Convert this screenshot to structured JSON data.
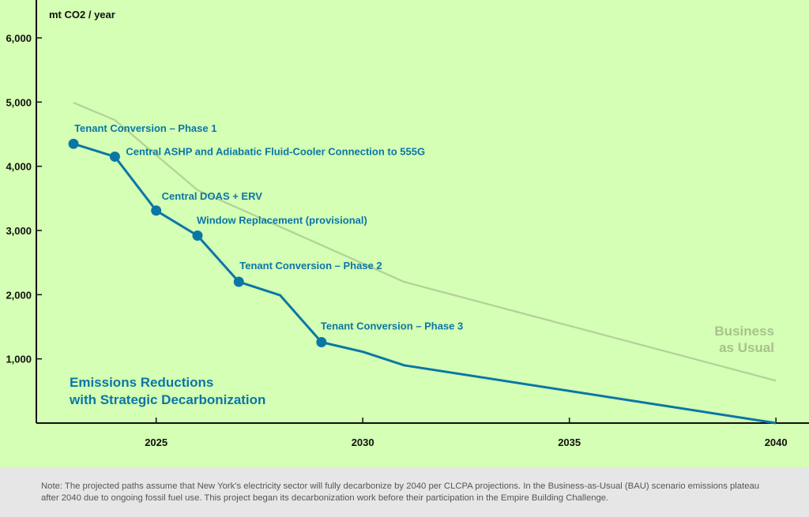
{
  "chart_data": {
    "type": "line",
    "ylabel": "mt CO2 / year",
    "yticks": [
      1000,
      2000,
      3000,
      4000,
      5000,
      6000
    ],
    "ytick_labels": [
      "1,000",
      "2,000",
      "3,000",
      "4,000",
      "5,000",
      "6,000"
    ],
    "xticks": [
      2025,
      2030,
      2035,
      2040
    ],
    "xlim": [
      2022.1,
      2040.8
    ],
    "ylim": [
      0,
      6590
    ],
    "colors": {
      "bau": "#b4d098",
      "strategic": "#0b76a6",
      "background": "#d4ffb4"
    },
    "series": [
      {
        "name": "Business as Usual",
        "label_lines": [
          "Business",
          "as Usual"
        ],
        "x": [
          2023,
          2024,
          2026,
          2031,
          2040
        ],
        "y": [
          4990,
          4720,
          3630,
          2200,
          660
        ]
      },
      {
        "name": "Emissions Reductions with Strategic Decarbonization",
        "label_lines": [
          "Emissions Reductions",
          "with Strategic Decarbonization"
        ],
        "x": [
          2023,
          2024,
          2025,
          2026,
          2027,
          2028,
          2029,
          2030,
          2031,
          2040
        ],
        "y": [
          4350,
          4150,
          3310,
          2920,
          2200,
          1990,
          1260,
          1110,
          900,
          0
        ],
        "markers": [
          2023,
          2024,
          2025,
          2026,
          2027,
          2029
        ]
      }
    ],
    "annotations": [
      {
        "x": 2023,
        "text": "Tenant Conversion – Phase 1"
      },
      {
        "x": 2024,
        "text": "Central ASHP and Adiabatic Fluid-Cooler Connection to 555G"
      },
      {
        "x": 2025,
        "text": "Central DOAS + ERV"
      },
      {
        "x": 2026,
        "text": "Window Replacement (provisional)"
      },
      {
        "x": 2027,
        "text": "Tenant Conversion – Phase 2"
      },
      {
        "x": 2029,
        "text": "Tenant Conversion – Phase 3"
      }
    ]
  },
  "note": "Note: The projected paths assume that New York's electricity sector will fully decarbonize by 2040 per CLCPA projections. In the Business-as-Usual (BAU) scenario emissions plateau after 2040 due to ongoing fossil fuel use. This project began its decarbonization work before their participation in the Empire Building Challenge."
}
